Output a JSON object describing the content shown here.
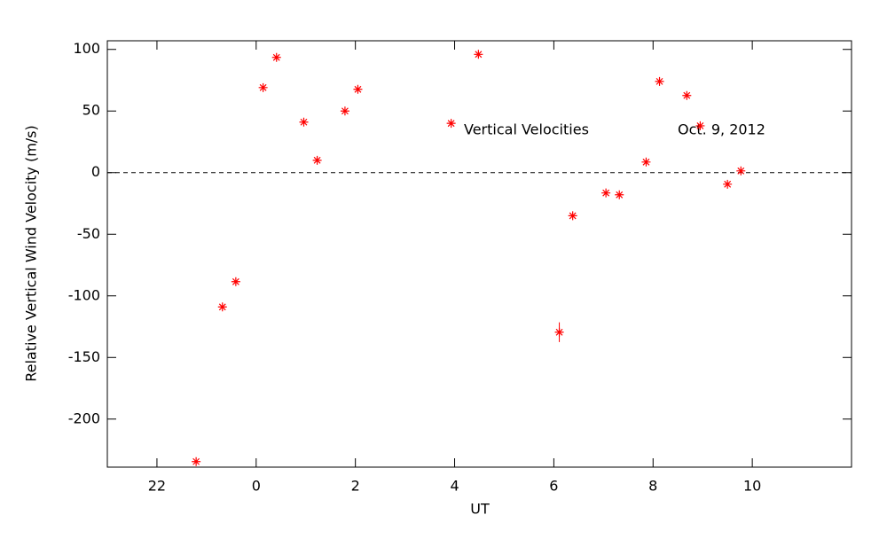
{
  "chart_data": {
    "type": "scatter",
    "xlabel": "UT",
    "ylabel": "Relative Vertical Wind Velocity (m/s)",
    "annotations": [
      "Vertical Velocities",
      "Oct. 9, 2012"
    ],
    "reference_line": 0,
    "color": "#ff0000",
    "x": [
      -1.21,
      -0.68,
      -0.41,
      0.14,
      0.41,
      0.96,
      1.23,
      1.79,
      2.05,
      3.93,
      4.48,
      6.11,
      6.38,
      7.05,
      7.32,
      7.86,
      8.13,
      8.68,
      8.95,
      9.5,
      9.77
    ],
    "values": [
      -234.5,
      -109,
      -88.5,
      69,
      93.5,
      41,
      10,
      50,
      67.6,
      40,
      96,
      -129.5,
      -35,
      -16.5,
      -18,
      8.6,
      74,
      62.6,
      38,
      -9.4,
      1.4
    ],
    "errors": [
      null,
      null,
      null,
      null,
      null,
      null,
      null,
      null,
      null,
      null,
      null,
      8,
      null,
      null,
      null,
      null,
      null,
      null,
      null,
      null,
      null
    ],
    "xlim": [
      -3,
      12
    ],
    "xticks": [
      {
        "value": -2,
        "label": "22"
      },
      0,
      2,
      4,
      6,
      8,
      10
    ],
    "ylim": [
      -239,
      107
    ],
    "yticks": [
      100,
      50,
      0,
      -50,
      -100,
      -150,
      -200
    ]
  }
}
